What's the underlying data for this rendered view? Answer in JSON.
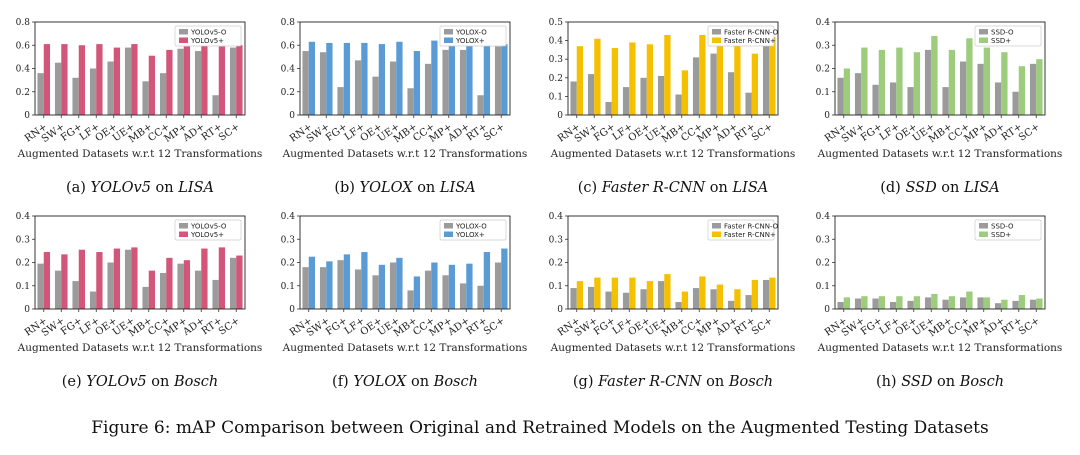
{
  "figure_caption": "Figure 6: mAP Comparison between Original and Retrained Models on the Augmented Testing Datasets",
  "shared": {
    "categories": [
      "RN+",
      "SW+",
      "FG+",
      "LF+",
      "OE+",
      "UE+",
      "MB+",
      "CC+",
      "MP+",
      "AD+",
      "RT+",
      "SC+"
    ],
    "xlabel": "Augmented Datasets w.r.t 12 Transformations",
    "colors": {
      "original": "#9b9b9b",
      "yolov5": "#d2557a",
      "yolox": "#5b9bd5",
      "frcnn": "#f5c000",
      "ssd": "#9ccc7c"
    }
  },
  "chart_data": [
    {
      "type": "bar",
      "caption_label": "(a)",
      "caption_model": "YOLOv5",
      "caption_on": "on",
      "caption_dataset": "LISA",
      "color_key": "yolov5",
      "ylim": [
        0,
        0.8
      ],
      "yticks": [
        "0",
        "0.2",
        "0.4",
        "0.6",
        "0.8"
      ],
      "legend": "top-right",
      "series": [
        {
          "name": "YOLOv5-O",
          "values": [
            0.36,
            0.45,
            0.32,
            0.4,
            0.46,
            0.58,
            0.29,
            0.36,
            0.57,
            0.55,
            0.17,
            0.58
          ]
        },
        {
          "name": "YOLOv5+",
          "values": [
            0.61,
            0.61,
            0.6,
            0.61,
            0.58,
            0.61,
            0.51,
            0.56,
            0.59,
            0.6,
            0.59,
            0.6
          ]
        }
      ]
    },
    {
      "type": "bar",
      "caption_label": "(b)",
      "caption_model": "YOLOX",
      "caption_on": "on",
      "caption_dataset": "LISA",
      "color_key": "yolox",
      "ylim": [
        0,
        0.8
      ],
      "yticks": [
        "0",
        "0.2",
        "0.4",
        "0.6",
        "0.8"
      ],
      "legend": "top-right",
      "series": [
        {
          "name": "YOLOX-O",
          "values": [
            0.55,
            0.54,
            0.24,
            0.47,
            0.33,
            0.46,
            0.23,
            0.44,
            0.56,
            0.56,
            0.17,
            0.59
          ]
        },
        {
          "name": "YOLOX+",
          "values": [
            0.63,
            0.62,
            0.62,
            0.62,
            0.61,
            0.63,
            0.55,
            0.64,
            0.61,
            0.62,
            0.6,
            0.61
          ]
        }
      ]
    },
    {
      "type": "bar",
      "caption_label": "(c)",
      "caption_model": "Faster R-CNN",
      "caption_on": "on",
      "caption_dataset": "LISA",
      "color_key": "frcnn",
      "ylim": [
        0,
        0.5
      ],
      "yticks": [
        "0",
        "0.1",
        "0.2",
        "0.3",
        "0.4",
        "0.5"
      ],
      "legend": "top-right",
      "series": [
        {
          "name": "Faster R-CNN-O",
          "values": [
            0.18,
            0.22,
            0.07,
            0.15,
            0.2,
            0.21,
            0.11,
            0.31,
            0.33,
            0.23,
            0.12,
            0.41
          ]
        },
        {
          "name": "Faster R-CNN+",
          "values": [
            0.37,
            0.41,
            0.36,
            0.39,
            0.38,
            0.43,
            0.24,
            0.43,
            0.4,
            0.39,
            0.33,
            0.42
          ]
        }
      ]
    },
    {
      "type": "bar",
      "caption_label": "(d)",
      "caption_model": "SSD",
      "caption_on": "on",
      "caption_dataset": "LISA",
      "color_key": "ssd",
      "ylim": [
        0,
        0.4
      ],
      "yticks": [
        "0",
        "0.1",
        "0.2",
        "0.3",
        "0.4"
      ],
      "legend": "top-right",
      "series": [
        {
          "name": "SSD-O",
          "values": [
            0.16,
            0.18,
            0.13,
            0.14,
            0.12,
            0.28,
            0.12,
            0.23,
            0.22,
            0.14,
            0.1,
            0.22
          ]
        },
        {
          "name": "SSD+",
          "values": [
            0.2,
            0.29,
            0.28,
            0.29,
            0.27,
            0.34,
            0.28,
            0.33,
            0.29,
            0.27,
            0.21,
            0.24
          ]
        }
      ]
    },
    {
      "type": "bar",
      "caption_label": "(e)",
      "caption_model": "YOLOv5",
      "caption_on": "on",
      "caption_dataset": "Bosch",
      "color_key": "yolov5",
      "ylim": [
        0,
        0.4
      ],
      "yticks": [
        "0",
        "0.1",
        "0.2",
        "0.3",
        "0.4"
      ],
      "legend": "top-right",
      "series": [
        {
          "name": "YOLOv5-O",
          "values": [
            0.195,
            0.165,
            0.12,
            0.075,
            0.2,
            0.255,
            0.095,
            0.155,
            0.195,
            0.165,
            0.125,
            0.22
          ]
        },
        {
          "name": "YOLOv5+",
          "values": [
            0.245,
            0.235,
            0.255,
            0.245,
            0.26,
            0.265,
            0.165,
            0.22,
            0.21,
            0.26,
            0.265,
            0.23
          ]
        }
      ]
    },
    {
      "type": "bar",
      "caption_label": "(f)",
      "caption_model": "YOLOX",
      "caption_on": "on",
      "caption_dataset": "Bosch",
      "color_key": "yolox",
      "ylim": [
        0,
        0.4
      ],
      "yticks": [
        "0",
        "0.1",
        "0.2",
        "0.3",
        "0.4"
      ],
      "legend": "top-right",
      "series": [
        {
          "name": "YOLOX-O",
          "values": [
            0.18,
            0.18,
            0.21,
            0.17,
            0.145,
            0.2,
            0.08,
            0.165,
            0.145,
            0.11,
            0.1,
            0.2
          ]
        },
        {
          "name": "YOLOX+",
          "values": [
            0.225,
            0.205,
            0.235,
            0.245,
            0.19,
            0.22,
            0.14,
            0.2,
            0.19,
            0.195,
            0.245,
            0.26
          ]
        }
      ]
    },
    {
      "type": "bar",
      "caption_label": "(g)",
      "caption_model": "Faster R-CNN",
      "caption_on": "on",
      "caption_dataset": "Bosch",
      "color_key": "frcnn",
      "ylim": [
        0,
        0.4
      ],
      "yticks": [
        "0",
        "0.1",
        "0.2",
        "0.3",
        "0.4"
      ],
      "legend": "top-right",
      "series": [
        {
          "name": "Faster R-CNN-O",
          "values": [
            0.09,
            0.095,
            0.075,
            0.07,
            0.085,
            0.12,
            0.03,
            0.09,
            0.085,
            0.035,
            0.06,
            0.125
          ]
        },
        {
          "name": "Faster R-CNN+",
          "values": [
            0.12,
            0.135,
            0.135,
            0.135,
            0.12,
            0.15,
            0.075,
            0.14,
            0.105,
            0.085,
            0.125,
            0.135
          ]
        }
      ]
    },
    {
      "type": "bar",
      "caption_label": "(h)",
      "caption_model": "SSD",
      "caption_on": "on",
      "caption_dataset": "Bosch",
      "color_key": "ssd",
      "ylim": [
        0,
        0.4
      ],
      "yticks": [
        "0",
        "0.1",
        "0.2",
        "0.3",
        "0.4"
      ],
      "legend": "top-right",
      "series": [
        {
          "name": "SSD-O",
          "values": [
            0.03,
            0.045,
            0.045,
            0.03,
            0.035,
            0.05,
            0.04,
            0.05,
            0.05,
            0.025,
            0.035,
            0.04
          ]
        },
        {
          "name": "SSD+",
          "values": [
            0.05,
            0.055,
            0.055,
            0.055,
            0.055,
            0.065,
            0.055,
            0.075,
            0.05,
            0.04,
            0.06,
            0.045
          ]
        }
      ]
    }
  ]
}
